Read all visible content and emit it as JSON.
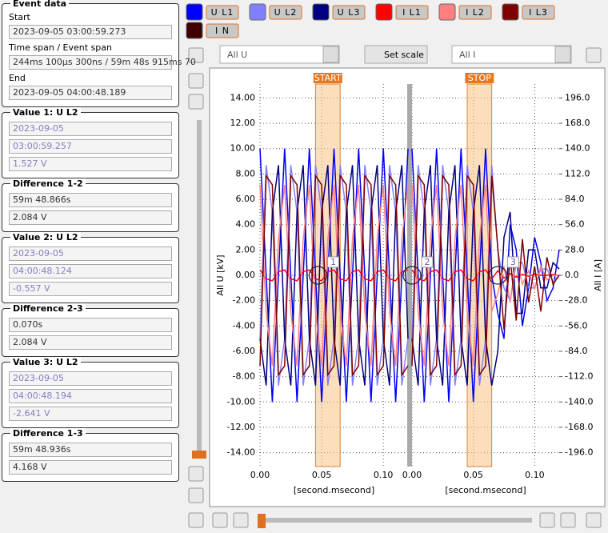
{
  "event_data": {
    "title": "Event data",
    "start_label": "Start",
    "start": "2023-09-05 03:00:59.273",
    "span_label": "Time span / Event span",
    "span": "244ms 100µs 300ns / 59m 48s 915ms 70",
    "end_label": "End",
    "end": "2023-09-05 04:00:48.189"
  },
  "groups": [
    {
      "title": "Value 1: U L2",
      "fields": [
        "2023-09-05",
        "03:00:59.257",
        "1.527 V"
      ],
      "dim": true
    },
    {
      "title": "Difference 1-2",
      "fields": [
        "59m 48.866s",
        "2.084 V"
      ],
      "dim": false
    },
    {
      "title": "Value 2: U L2",
      "fields": [
        "2023-09-05",
        "04:00:48.124",
        "-0.557 V"
      ],
      "dim": true
    },
    {
      "title": "Difference 2-3",
      "fields": [
        "0.070s",
        "2.084 V"
      ],
      "dim": false
    },
    {
      "title": "Value 3: U L2",
      "fields": [
        "2023-09-05",
        "04:00:48.194",
        "-2.641 V"
      ],
      "dim": true
    },
    {
      "title": "Difference 1-3",
      "fields": [
        "59m 48.936s",
        "4.168 V"
      ],
      "dim": false
    }
  ],
  "toolbar": {
    "u_select": "All U",
    "scale_button": "Set scale",
    "i_select": "All I"
  },
  "chart_data": {
    "type": "line",
    "y_label": "All U [kV]",
    "y2_label": "All I [A]",
    "grid": true,
    "ylim": [
      -15.1,
      15.1
    ],
    "y2lim": [
      -211.4,
      211.4
    ],
    "yticks": [
      {
        "value": 14,
        "label": "14.00"
      },
      {
        "value": 12,
        "label": "12.00"
      },
      {
        "value": 10,
        "label": "10.00"
      },
      {
        "value": 8,
        "label": "8.00"
      },
      {
        "value": 6,
        "label": "6.00"
      },
      {
        "value": 4,
        "label": "4.00"
      },
      {
        "value": 2,
        "label": "2.00"
      },
      {
        "value": 0,
        "label": "0.00"
      },
      {
        "value": -2,
        "label": "-2.00"
      },
      {
        "value": -4,
        "label": "-4.00"
      },
      {
        "value": -6,
        "label": "-6.00"
      },
      {
        "value": -8,
        "label": "-8.00"
      },
      {
        "value": -10,
        "label": "-10.00"
      },
      {
        "value": -12,
        "label": "-12.00"
      },
      {
        "value": -14,
        "label": "-14.00"
      }
    ],
    "y2ticks": [
      {
        "value": 196,
        "label": "196.0"
      },
      {
        "value": 168,
        "label": "168.0"
      },
      {
        "value": 140,
        "label": "140.0"
      },
      {
        "value": 112,
        "label": "112.0"
      },
      {
        "value": 84,
        "label": "84.0"
      },
      {
        "value": 56,
        "label": "56.0"
      },
      {
        "value": 28,
        "label": "28.0"
      },
      {
        "value": 0,
        "label": "0.0"
      },
      {
        "value": -28,
        "label": "-28.0"
      },
      {
        "value": -56,
        "label": "-56.0"
      },
      {
        "value": -84,
        "label": "-84.0"
      },
      {
        "value": -112,
        "label": "-112.0"
      },
      {
        "value": -140,
        "label": "-140.0"
      },
      {
        "value": -168,
        "label": "-168.0"
      },
      {
        "value": -196,
        "label": "-196.0"
      }
    ],
    "x": [
      0,
      0.005,
      0.01,
      0.015,
      0.02,
      0.025,
      0.03,
      0.035,
      0.04,
      0.045,
      0.05,
      0.055,
      0.06,
      0.065,
      0.07,
      0.075,
      0.08,
      0.085,
      0.09,
      0.095,
      0.1,
      0.105,
      0.11,
      0.115,
      0.12
    ],
    "segments": [
      {
        "xlim": [
          0,
          0.12
        ],
        "x_label": "[second.msecond]",
        "xticks": [
          {
            "value": 0,
            "label": "0.00"
          },
          {
            "value": 0.05,
            "label": "0.05"
          },
          {
            "value": 0.1,
            "label": "0.10"
          }
        ]
      },
      {
        "xlim": [
          0,
          0.12
        ],
        "x_label": "[second.msecond]",
        "xticks": [
          {
            "value": 0,
            "label": "0.00"
          },
          {
            "value": 0.05,
            "label": "0.05"
          },
          {
            "value": 0.1,
            "label": "0.10"
          }
        ]
      }
    ],
    "markers": [
      {
        "label": "START",
        "segment": 0,
        "range": [
          0.045,
          0.065
        ]
      },
      {
        "label": "STOP",
        "segment": 1,
        "range": [
          0.045,
          0.065
        ]
      }
    ],
    "cursors": [
      {
        "label": "1",
        "segment": 0,
        "x": 0.047
      },
      {
        "label": "2",
        "segment": 1,
        "x": 0.0
      },
      {
        "label": "3",
        "segment": 1,
        "x": 0.07
      }
    ],
    "series": [
      {
        "name": "U L1",
        "color": "#0000ff",
        "values": [
          [
            10,
            0,
            -10,
            0,
            10,
            0,
            -10,
            0,
            10,
            0,
            -10,
            0,
            10,
            0,
            -10,
            0,
            10,
            0,
            -10,
            0,
            10,
            0,
            -10,
            0,
            10
          ],
          [
            10,
            0,
            -10,
            0,
            10,
            0,
            -10,
            0,
            10,
            0,
            -10,
            0,
            10,
            0,
            -3,
            -5,
            4,
            2,
            -4,
            -1,
            3,
            1,
            -2,
            -1,
            2
          ]
        ]
      },
      {
        "name": "U L2",
        "color": "#8080ff",
        "values": [
          [
            -5,
            8.7,
            5,
            -8.7,
            -5,
            8.7,
            5,
            -8.7,
            -5,
            8.7,
            5,
            -8.7,
            -5,
            8.7,
            5,
            -8.7,
            -5,
            8.7,
            5,
            -8.7,
            -5,
            8.7,
            5,
            -8.7,
            -5
          ],
          [
            -5,
            8.7,
            5,
            -8.7,
            -5,
            8.7,
            5,
            -8.7,
            -5,
            8.7,
            5,
            -8.7,
            -5,
            8.7,
            2,
            -1,
            -2,
            1,
            1,
            -1,
            -1,
            0.5,
            0.5,
            -0.5,
            0
          ]
        ]
      },
      {
        "name": "U L3",
        "color": "#000080",
        "values": [
          [
            -5,
            -8.7,
            5,
            8.7,
            -5,
            -8.7,
            5,
            8.7,
            -5,
            -8.7,
            5,
            8.7,
            -5,
            -8.7,
            5,
            8.7,
            -5,
            -8.7,
            5,
            8.7,
            -5,
            -8.7,
            5,
            8.7,
            -5
          ],
          [
            -5,
            -8.7,
            5,
            8.7,
            -5,
            -8.7,
            5,
            8.7,
            -5,
            -8.7,
            5,
            8.7,
            -5,
            -8.7,
            -6,
            3,
            5,
            -3,
            -3,
            2,
            2,
            -1,
            -1,
            1,
            0.5
          ]
        ]
      },
      {
        "name": "I L1",
        "color": "#ff0000",
        "axis": "y2",
        "values": [
          [
            6,
            -4,
            -6,
            4,
            6,
            -4,
            -6,
            4,
            6,
            -4,
            -6,
            4,
            6,
            -4,
            -6,
            4,
            6,
            -4,
            -6,
            4,
            6,
            -4,
            -6,
            4,
            6
          ],
          [
            6,
            -4,
            -6,
            4,
            6,
            -4,
            -6,
            4,
            6,
            -4,
            -6,
            4,
            6,
            -4,
            5,
            -3,
            2,
            -2,
            1,
            -1,
            1,
            0,
            0,
            1,
            0
          ]
        ]
      },
      {
        "name": "I L2",
        "color": "#ff8080",
        "axis": "y2",
        "values": [
          [
            100,
            -40,
            -100,
            40,
            100,
            -40,
            -100,
            40,
            100,
            -40,
            -100,
            40,
            100,
            -40,
            -100,
            40,
            100,
            -40,
            -100,
            40,
            100,
            -40,
            -100,
            40,
            100
          ],
          [
            100,
            -40,
            -100,
            40,
            100,
            -40,
            -100,
            40,
            100,
            -40,
            -100,
            40,
            100,
            -40,
            -20,
            10,
            -30,
            20,
            -10,
            5,
            -15,
            10,
            -5,
            0,
            0
          ]
        ]
      },
      {
        "name": "I L3",
        "color": "#800000",
        "axis": "y2",
        "values": [
          [
            -100,
            110,
            100,
            -110,
            -100,
            110,
            100,
            -110,
            -100,
            110,
            100,
            -110,
            -100,
            110,
            100,
            -110,
            -100,
            110,
            100,
            -110,
            -100,
            110,
            100,
            -110,
            -100
          ],
          [
            -100,
            110,
            100,
            -110,
            -100,
            110,
            100,
            -110,
            -100,
            110,
            100,
            -110,
            -100,
            110,
            30,
            -60,
            20,
            -50,
            40,
            -30,
            10,
            -40,
            20,
            -10,
            0
          ]
        ]
      },
      {
        "name": "I N",
        "color": "#400000",
        "axis": "y2",
        "values": [
          [],
          []
        ]
      }
    ]
  }
}
